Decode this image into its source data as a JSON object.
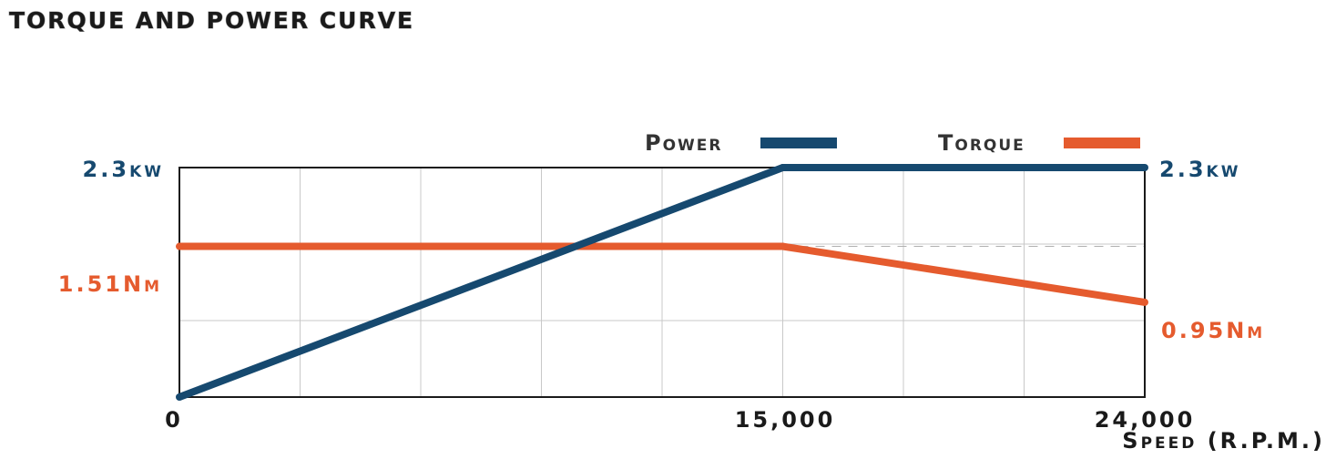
{
  "chart_data": {
    "type": "line",
    "title": "TORQUE AND POWER CURVE",
    "xlabel": "Speed (R.P.M.)",
    "xlim": [
      0,
      24000
    ],
    "x_ticks": [
      "0",
      "15,000",
      "24,000"
    ],
    "x_tick_values": [
      0,
      15000,
      24000
    ],
    "grid": true,
    "legend_position": "top-right",
    "series": [
      {
        "name": "Power",
        "color": "#16496f",
        "axis": "left",
        "x": [
          0,
          15000,
          24000
        ],
        "y": [
          0,
          2.3,
          2.3
        ]
      },
      {
        "name": "Torque",
        "color": "#e55b2e",
        "axis": "left",
        "x": [
          0,
          15000,
          24000
        ],
        "y": [
          1.51,
          1.51,
          0.95
        ]
      }
    ],
    "annotations": {
      "power_left": "2.3kw",
      "power_right": "2.3kw",
      "torque_left": "1.51Nm",
      "torque_right": "0.95Nm"
    },
    "power_ylim": [
      0,
      2.3
    ],
    "torque_ylim": [
      0,
      2.3
    ],
    "colors": {
      "power": "#16496f",
      "torque": "#e55b2e",
      "grid": "#c8c8c8",
      "frame": "#1a1a1a"
    }
  }
}
